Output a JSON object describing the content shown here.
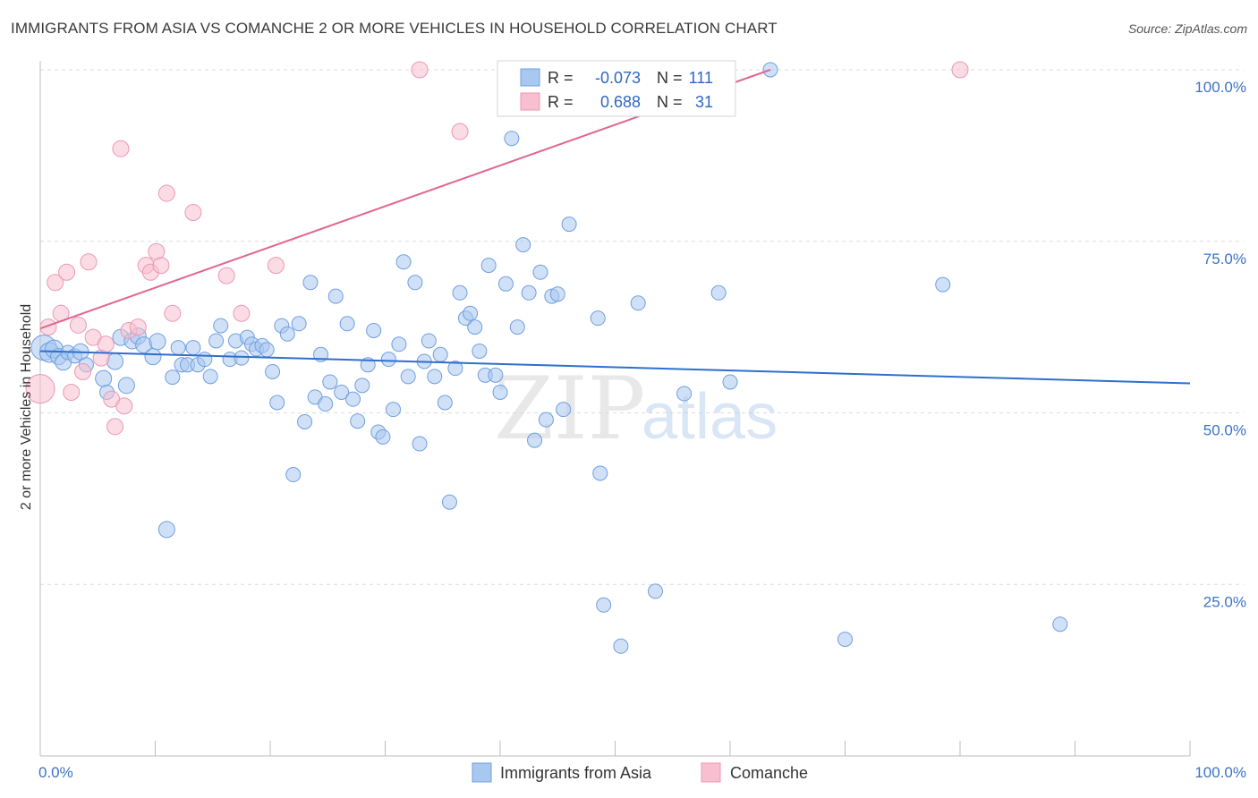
{
  "header": {
    "title": "IMMIGRANTS FROM ASIA VS COMANCHE 2 OR MORE VEHICLES IN HOUSEHOLD CORRELATION CHART",
    "source": "Source: ZipAtlas.com"
  },
  "watermark": {
    "zip": "ZIP",
    "atlas": "atlas"
  },
  "colors": {
    "blue_fill": "#a9c8f0",
    "blue_stroke": "#6f9fe0",
    "blue_line": "#2e6fce",
    "pink_fill": "#f7bfd0",
    "pink_stroke": "#ec97b3",
    "pink_line": "#e0668f",
    "tick_text": "#3b73c4"
  },
  "legend": {
    "rows": [
      {
        "r_label": "R =",
        "r_value": "-0.073",
        "n_label": "N =",
        "n_value": "111"
      },
      {
        "r_label": "R =",
        "r_value": "0.688",
        "n_label": "N =",
        "n_value": "31"
      }
    ]
  },
  "bottom_legend": [
    "Immigrants from Asia",
    "Comanche"
  ],
  "chart_data": {
    "type": "scatter",
    "title": "IMMIGRANTS FROM ASIA VS COMANCHE 2 OR MORE VEHICLES IN HOUSEHOLD CORRELATION CHART",
    "xlabel": "",
    "ylabel": "2 or more Vehicles in Household",
    "x_tick_labels": [
      "0.0%",
      "100.0%"
    ],
    "y_tick_labels": [
      "25.0%",
      "50.0%",
      "75.0%",
      "100.0%"
    ],
    "xlim": [
      0,
      100
    ],
    "ylim": [
      0,
      100
    ],
    "grid": "horizontal dashed",
    "legend_placement": "top-center",
    "series": [
      {
        "name": "Immigrants from Asia",
        "trend": {
          "x0": 0,
          "y0": 59.0,
          "x1": 100,
          "y1": 54.3
        },
        "points": [
          [
            0.3,
            59.5,
            14
          ],
          [
            0.8,
            58.8,
            11
          ],
          [
            1.2,
            59.3,
            10
          ],
          [
            1.6,
            58.2,
            9
          ],
          [
            2.0,
            57.4,
            9
          ],
          [
            2.4,
            58.8,
            8
          ],
          [
            3.0,
            58.3,
            8
          ],
          [
            3.5,
            58.9,
            9
          ],
          [
            4.0,
            57.0,
            8
          ],
          [
            5.5,
            55.0,
            9
          ],
          [
            5.8,
            53.0,
            8
          ],
          [
            6.5,
            57.5,
            9
          ],
          [
            7.0,
            61.0,
            9
          ],
          [
            7.5,
            54.0,
            9
          ],
          [
            8.0,
            60.5,
            9
          ],
          [
            8.5,
            61.2,
            9
          ],
          [
            9.0,
            59.9,
            9
          ],
          [
            9.8,
            58.2,
            9
          ],
          [
            10.2,
            60.4,
            9
          ],
          [
            11.0,
            33.0,
            9
          ],
          [
            11.5,
            55.2,
            8
          ],
          [
            12.0,
            59.5,
            8
          ],
          [
            12.3,
            57.0,
            8
          ],
          [
            12.8,
            57.0,
            8
          ],
          [
            13.3,
            59.5,
            8
          ],
          [
            13.7,
            57.0,
            8
          ],
          [
            14.3,
            57.8,
            8
          ],
          [
            14.8,
            55.3,
            8
          ],
          [
            15.3,
            60.5,
            8
          ],
          [
            15.7,
            62.7,
            8
          ],
          [
            16.5,
            57.8,
            8
          ],
          [
            17.0,
            60.5,
            8
          ],
          [
            17.5,
            58.0,
            8
          ],
          [
            18.0,
            61.0,
            8
          ],
          [
            18.4,
            60.0,
            8
          ],
          [
            18.8,
            59.3,
            8
          ],
          [
            19.3,
            59.8,
            8
          ],
          [
            19.7,
            59.2,
            8
          ],
          [
            20.2,
            56.0,
            8
          ],
          [
            20.6,
            51.5,
            8
          ],
          [
            21.0,
            62.7,
            8
          ],
          [
            21.5,
            61.5,
            8
          ],
          [
            22.0,
            41.0,
            8
          ],
          [
            22.5,
            63.0,
            8
          ],
          [
            23.0,
            48.7,
            8
          ],
          [
            23.5,
            69.0,
            8
          ],
          [
            23.9,
            52.3,
            8
          ],
          [
            24.4,
            58.5,
            8
          ],
          [
            24.8,
            51.3,
            8
          ],
          [
            25.2,
            54.5,
            8
          ],
          [
            25.7,
            67.0,
            8
          ],
          [
            26.2,
            53.0,
            8
          ],
          [
            26.7,
            63.0,
            8
          ],
          [
            27.2,
            52.0,
            8
          ],
          [
            27.6,
            48.8,
            8
          ],
          [
            28.0,
            54.0,
            8
          ],
          [
            28.5,
            57.0,
            8
          ],
          [
            29.0,
            62.0,
            8
          ],
          [
            29.4,
            47.2,
            8
          ],
          [
            29.8,
            46.5,
            8
          ],
          [
            30.3,
            57.8,
            8
          ],
          [
            30.7,
            50.5,
            8
          ],
          [
            31.2,
            60.0,
            8
          ],
          [
            31.6,
            72.0,
            8
          ],
          [
            32.0,
            55.3,
            8
          ],
          [
            32.6,
            69.0,
            8
          ],
          [
            33.0,
            45.5,
            8
          ],
          [
            33.4,
            57.5,
            8
          ],
          [
            33.8,
            60.5,
            8
          ],
          [
            34.3,
            55.3,
            8
          ],
          [
            34.8,
            58.5,
            8
          ],
          [
            35.2,
            51.5,
            8
          ],
          [
            35.6,
            37.0,
            8
          ],
          [
            36.1,
            56.5,
            8
          ],
          [
            36.5,
            67.5,
            8
          ],
          [
            37.0,
            63.8,
            8
          ],
          [
            37.4,
            64.5,
            8
          ],
          [
            37.8,
            62.5,
            8
          ],
          [
            38.2,
            59.0,
            8
          ],
          [
            38.7,
            55.5,
            8
          ],
          [
            39.0,
            71.5,
            8
          ],
          [
            39.6,
            55.5,
            8
          ],
          [
            40.0,
            53.0,
            8
          ],
          [
            40.5,
            68.8,
            8
          ],
          [
            41.0,
            90.0,
            8
          ],
          [
            41.5,
            62.5,
            8
          ],
          [
            42.0,
            74.5,
            8
          ],
          [
            42.5,
            67.5,
            8
          ],
          [
            43.0,
            46.0,
            8
          ],
          [
            43.5,
            70.5,
            8
          ],
          [
            44.0,
            49.0,
            8
          ],
          [
            44.5,
            67.0,
            8
          ],
          [
            45.0,
            67.3,
            8
          ],
          [
            45.5,
            50.5,
            8
          ],
          [
            46.0,
            77.5,
            8
          ],
          [
            48.5,
            63.8,
            8
          ],
          [
            48.7,
            41.2,
            8
          ],
          [
            49.0,
            22.0,
            8
          ],
          [
            50.5,
            16.0,
            8
          ],
          [
            51.0,
            100.0,
            8
          ],
          [
            52.0,
            66.0,
            8
          ],
          [
            53.5,
            24.0,
            8
          ],
          [
            56.0,
            52.8,
            8
          ],
          [
            59.0,
            67.5,
            8
          ],
          [
            60.0,
            54.5,
            8
          ],
          [
            63.5,
            100.0,
            8
          ],
          [
            70.0,
            17.0,
            8
          ],
          [
            78.5,
            68.7,
            8
          ],
          [
            88.7,
            19.2,
            8
          ]
        ]
      },
      {
        "name": "Comanche",
        "trend": {
          "x0": 0,
          "y0": 62.3,
          "x1": 63.5,
          "y1": 100.0
        },
        "points": [
          [
            0.0,
            53.5,
            16
          ],
          [
            0.7,
            62.5,
            9
          ],
          [
            1.3,
            69.0,
            9
          ],
          [
            1.8,
            64.5,
            9
          ],
          [
            2.3,
            70.5,
            9
          ],
          [
            2.7,
            53.0,
            9
          ],
          [
            3.3,
            62.8,
            9
          ],
          [
            3.7,
            56.0,
            9
          ],
          [
            4.2,
            72.0,
            9
          ],
          [
            4.6,
            61.0,
            9
          ],
          [
            5.3,
            58.0,
            9
          ],
          [
            5.7,
            60.0,
            9
          ],
          [
            6.2,
            52.0,
            9
          ],
          [
            6.5,
            48.0,
            9
          ],
          [
            7.0,
            88.5,
            9
          ],
          [
            7.3,
            51.0,
            9
          ],
          [
            7.7,
            62.0,
            9
          ],
          [
            8.5,
            62.5,
            9
          ],
          [
            9.2,
            71.5,
            9
          ],
          [
            9.6,
            70.5,
            9
          ],
          [
            10.1,
            73.5,
            9
          ],
          [
            10.5,
            71.5,
            9
          ],
          [
            11.0,
            82.0,
            9
          ],
          [
            11.5,
            64.5,
            9
          ],
          [
            13.3,
            79.2,
            9
          ],
          [
            16.2,
            70.0,
            9
          ],
          [
            17.5,
            64.5,
            9
          ],
          [
            20.5,
            71.5,
            9
          ],
          [
            33.0,
            100.0,
            9
          ],
          [
            36.5,
            91.0,
            9
          ],
          [
            80.0,
            100.0,
            9
          ]
        ]
      }
    ]
  }
}
